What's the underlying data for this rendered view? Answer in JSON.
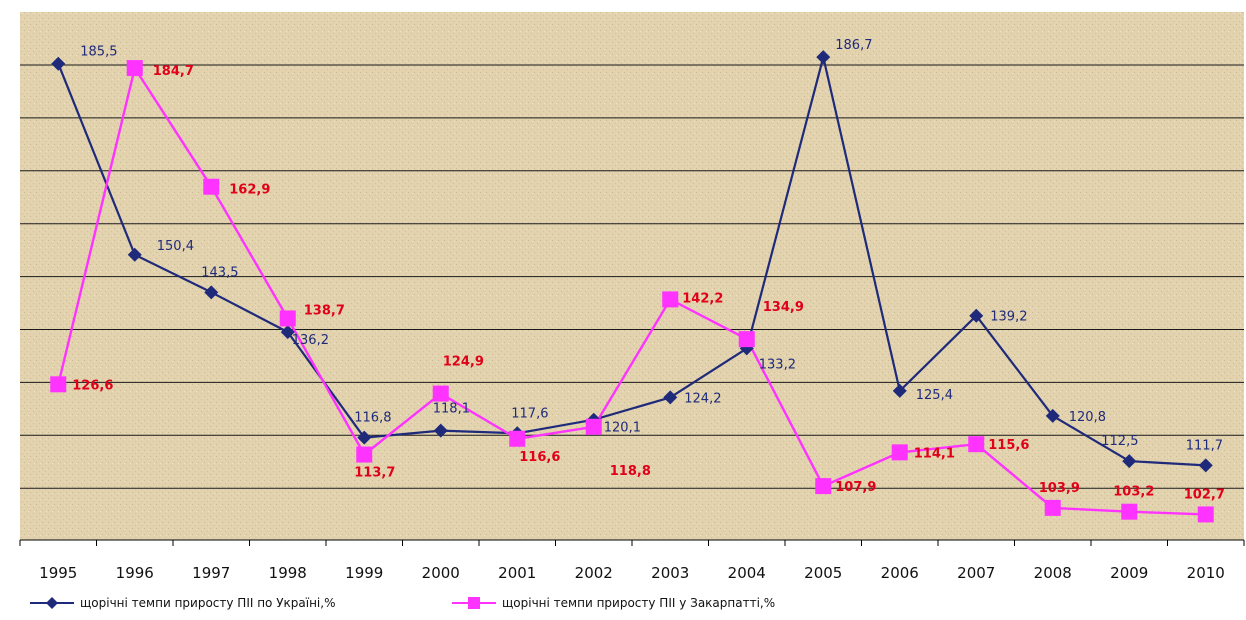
{
  "chart_data": {
    "type": "line",
    "categories": [
      "1995",
      "1996",
      "1997",
      "1998",
      "1999",
      "2000",
      "2001",
      "2002",
      "2003",
      "2004",
      "2005",
      "2006",
      "2007",
      "2008",
      "2009",
      "2010"
    ],
    "series": [
      {
        "name": "щорічні темпи приросту ПІІ по Україні,%",
        "color": "#1f2a7a",
        "marker": "diamond",
        "values": [
          185.5,
          150.4,
          143.5,
          136.2,
          116.8,
          118.1,
          117.6,
          120.1,
          124.2,
          133.2,
          186.7,
          125.4,
          139.2,
          120.8,
          112.5,
          111.7
        ],
        "labels": [
          "185,5",
          "150,4",
          "143,5",
          "136,2",
          "116,8",
          "118,1",
          "117,6",
          "120,1",
          "124,2",
          "133,2",
          "186,7",
          "125,4",
          "139,2",
          "120,8",
          "112,5",
          "111,7"
        ]
      },
      {
        "name": "щорічні темпи приросту ПІІ у Закарпатті,%",
        "color": "#ff33ff",
        "marker": "square",
        "values": [
          126.6,
          184.7,
          162.9,
          138.7,
          113.7,
          124.9,
          116.6,
          118.8,
          142.2,
          134.9,
          107.9,
          114.1,
          115.6,
          103.9,
          103.2,
          102.7
        ],
        "labels": [
          "126,6",
          "184,7",
          "162,9",
          "138,7",
          "113,7",
          "124,9",
          "116,6",
          "118,8",
          "142,2",
          "134,9",
          "107,9",
          "114,1",
          "115,6",
          "103,9",
          "103,2",
          "102,7"
        ]
      }
    ],
    "ylim": [
      98,
      195
    ],
    "grid": true,
    "legend_position": "bottom"
  }
}
